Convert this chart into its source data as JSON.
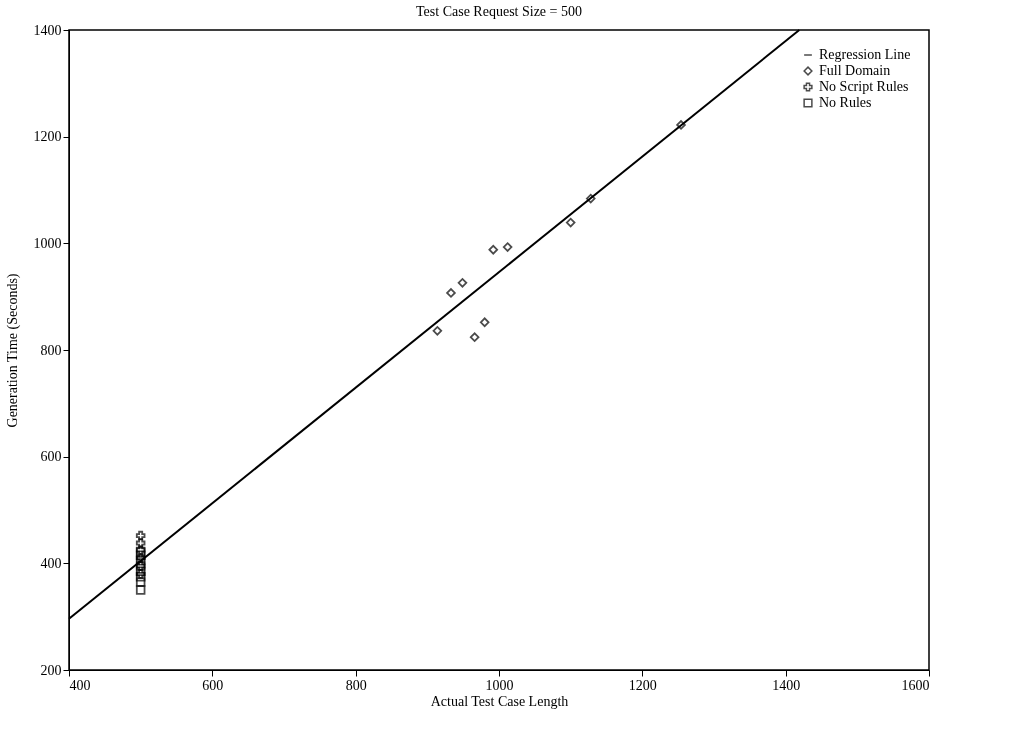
{
  "chart_data": {
    "type": "scatter",
    "title": "Test Case Request Size = 500",
    "xlabel": "Actual Test Case Length",
    "ylabel": "Generation Time (Seconds)",
    "xlim": [
      400,
      1600
    ],
    "xticks": [
      400,
      600,
      800,
      1000,
      1200,
      1400,
      1600
    ],
    "ylim": [
      200,
      1400
    ],
    "yticks": [
      200,
      400,
      600,
      800,
      1000,
      1200,
      1400
    ],
    "grid": false,
    "legend": "top right",
    "series": [
      {
        "name": "Regression Line",
        "type": "line",
        "color": "#000000",
        "marker": "none",
        "line_style": "solid",
        "x": [
          400,
          1419
        ],
        "values": [
          296,
          1400
        ]
      },
      {
        "name": "Full Domain",
        "type": "scatter",
        "color": "#000000",
        "marker": "diamond",
        "x": [
          914,
          933,
          949,
          966,
          980,
          992,
          1012,
          1100,
          1128,
          1254
        ],
        "values": [
          836,
          907,
          926,
          824,
          852,
          988,
          993,
          1039,
          1084,
          1222
        ]
      },
      {
        "name": "No Script Rules",
        "type": "scatter",
        "color": "#000000",
        "marker": "cross",
        "x": [
          500,
          500,
          500,
          500,
          500,
          500
        ],
        "values": [
          452,
          438,
          425,
          410,
          395,
          380
        ]
      },
      {
        "name": "No Rules",
        "type": "scatter",
        "color": "#000000",
        "marker": "square",
        "x": [
          500,
          500,
          500,
          500,
          500,
          500,
          500,
          500
        ],
        "values": [
          350,
          365,
          375,
          385,
          395,
          405,
          415,
          422
        ]
      }
    ]
  }
}
